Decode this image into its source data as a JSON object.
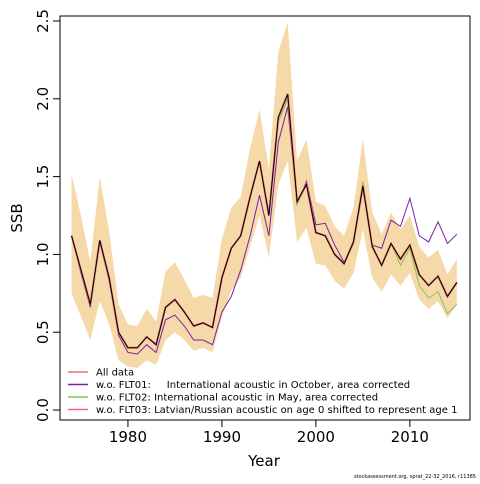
{
  "chart_data": {
    "type": "line",
    "x_label": "Year",
    "y_label": "SSB",
    "x": [
      1974,
      1975,
      1976,
      1977,
      1978,
      1979,
      1980,
      1981,
      1982,
      1983,
      1984,
      1985,
      1986,
      1987,
      1988,
      1989,
      1990,
      1991,
      1992,
      1993,
      1994,
      1995,
      1996,
      1997,
      1998,
      1999,
      2000,
      2001,
      2002,
      2003,
      2004,
      2005,
      2006,
      2007,
      2008,
      2009,
      2010,
      2011,
      2012,
      2013,
      2014,
      2015
    ],
    "band": {
      "color": "#f5d9a8",
      "upper": [
        1.51,
        1.25,
        0.95,
        1.5,
        1.15,
        0.68,
        0.55,
        0.54,
        0.65,
        0.57,
        0.89,
        0.95,
        0.84,
        0.72,
        0.74,
        0.72,
        1.1,
        1.3,
        1.37,
        1.68,
        1.93,
        1.55,
        2.3,
        2.49,
        1.6,
        1.74,
        1.34,
        1.31,
        1.18,
        1.12,
        1.3,
        1.74,
        1.27,
        1.13,
        1.27,
        1.16,
        1.25,
        1.05,
        0.98,
        1.03,
        0.87,
        0.97
      ],
      "lower": [
        0.75,
        0.6,
        0.45,
        0.7,
        0.55,
        0.32,
        0.28,
        0.27,
        0.32,
        0.29,
        0.45,
        0.5,
        0.45,
        0.38,
        0.4,
        0.37,
        0.6,
        0.77,
        0.85,
        1.05,
        1.25,
        0.98,
        1.45,
        1.6,
        1.08,
        1.17,
        0.94,
        0.93,
        0.83,
        0.78,
        0.88,
        1.16,
        0.85,
        0.76,
        0.87,
        0.8,
        0.88,
        0.71,
        0.65,
        0.7,
        0.59,
        0.68
      ]
    },
    "series": [
      {
        "name": "w.o. FLT01:     International acoustic in October, area corrected",
        "color": "#7b1fa2",
        "width": 1,
        "values": [
          1.12,
          0.88,
          0.66,
          1.08,
          0.83,
          0.48,
          0.37,
          0.36,
          0.42,
          0.37,
          0.58,
          0.61,
          0.54,
          0.45,
          0.45,
          0.42,
          0.63,
          0.73,
          0.9,
          1.12,
          1.38,
          1.12,
          1.72,
          1.95,
          1.32,
          1.47,
          1.19,
          1.2,
          1.06,
          0.95,
          1.07,
          1.42,
          1.06,
          1.04,
          1.22,
          1.18,
          1.36,
          1.12,
          1.08,
          1.21,
          1.07,
          1.13
        ]
      },
      {
        "name": "w.o. FLT02: International acoustic in May, area corrected",
        "color": "#8bc34a",
        "width": 1,
        "values": [
          1.12,
          0.9,
          0.68,
          1.09,
          0.85,
          0.5,
          0.4,
          0.4,
          0.47,
          0.42,
          0.66,
          0.71,
          0.63,
          0.54,
          0.56,
          0.53,
          0.85,
          1.04,
          1.12,
          1.37,
          1.6,
          1.25,
          1.85,
          2.0,
          1.32,
          1.45,
          1.14,
          1.12,
          1.0,
          0.94,
          1.08,
          1.47,
          1.06,
          0.93,
          1.07,
          0.93,
          1.04,
          0.8,
          0.72,
          0.76,
          0.62,
          0.68
        ]
      },
      {
        "name": "w.o. FLT03: Latvian/Russian acoustic on age 0 shifted to represent age 1",
        "color": "#f06292",
        "width": 1,
        "values": [
          1.12,
          0.9,
          0.68,
          1.09,
          0.85,
          0.5,
          0.4,
          0.4,
          0.47,
          0.42,
          0.66,
          0.71,
          0.63,
          0.54,
          0.56,
          0.53,
          0.85,
          1.04,
          1.12,
          1.37,
          1.6,
          1.25,
          1.88,
          2.03,
          1.34,
          1.45,
          1.14,
          1.12,
          1.0,
          0.94,
          1.08,
          1.44,
          1.05,
          0.93,
          1.07,
          0.97,
          1.06,
          0.87,
          0.8,
          0.86,
          0.73,
          0.82
        ]
      },
      {
        "name": "All data",
        "color": "#e57373",
        "width": 2,
        "values": [
          1.12,
          0.9,
          0.68,
          1.09,
          0.85,
          0.5,
          0.4,
          0.4,
          0.47,
          0.42,
          0.66,
          0.71,
          0.63,
          0.54,
          0.56,
          0.53,
          0.85,
          1.04,
          1.12,
          1.37,
          1.6,
          1.25,
          1.88,
          2.03,
          1.34,
          1.45,
          1.14,
          1.12,
          1.0,
          0.94,
          1.08,
          1.44,
          1.05,
          0.93,
          1.07,
          0.97,
          1.06,
          0.87,
          0.8,
          0.86,
          0.73,
          0.82
        ]
      }
    ],
    "legend_order": [
      3,
      0,
      1,
      2
    ],
    "xlim": [
      1972.77,
      2016.4
    ],
    "xticks": [
      1980,
      1990,
      2000,
      2010
    ],
    "ylim": [
      -0.064,
      2.532
    ],
    "yticks": [
      {
        "value": 0,
        "label": "0.0"
      },
      0.5,
      {
        "value": 1,
        "label": "1.0"
      },
      1.5,
      {
        "value": 2,
        "label": "2.0"
      },
      2.5
    ],
    "legend": "bottom-left",
    "footer": "stockassessment.org, sprat_22-32_2016, r11385"
  }
}
